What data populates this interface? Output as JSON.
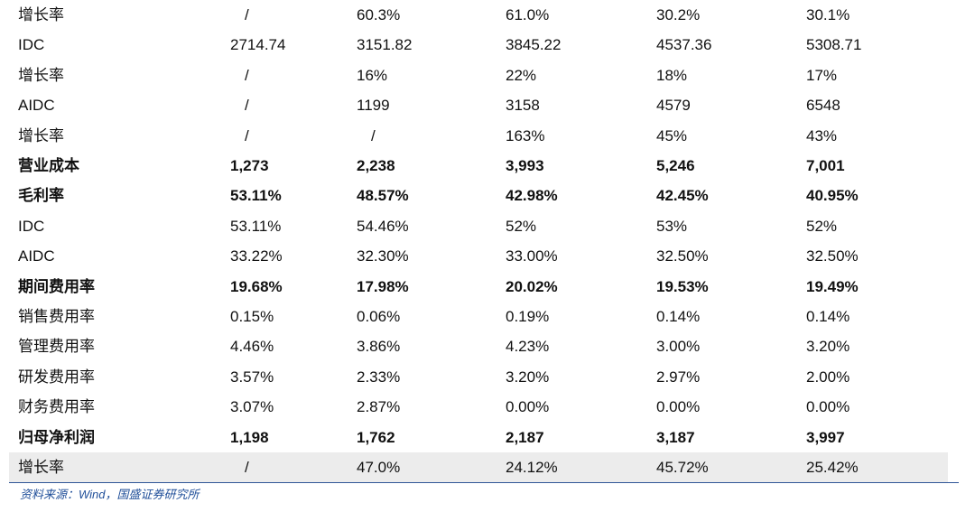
{
  "table": {
    "rows": [
      {
        "cells": [
          "增长率",
          "/",
          "60.3%",
          "61.0%",
          "30.2%",
          "30.1%"
        ]
      },
      {
        "cells": [
          "IDC",
          "2714.74",
          "3151.82",
          "3845.22",
          "4537.36",
          "5308.71"
        ]
      },
      {
        "cells": [
          "增长率",
          "/",
          "16%",
          "22%",
          "18%",
          "17%"
        ]
      },
      {
        "cells": [
          "AIDC",
          "/",
          "1199",
          "3158",
          "4579",
          "6548"
        ]
      },
      {
        "cells": [
          "增长率",
          "/",
          "/",
          "163%",
          "45%",
          "43%"
        ]
      },
      {
        "cells": [
          "营业成本",
          "1,273",
          "2,238",
          "3,993",
          "5,246",
          "7,001"
        ],
        "bold": true
      },
      {
        "cells": [
          "毛利率",
          "53.11%",
          "48.57%",
          "42.98%",
          "42.45%",
          "40.95%"
        ],
        "bold": true
      },
      {
        "cells": [
          "IDC",
          "53.11%",
          "54.46%",
          "52%",
          "53%",
          "52%"
        ]
      },
      {
        "cells": [
          "AIDC",
          "33.22%",
          "32.30%",
          "33.00%",
          "32.50%",
          "32.50%"
        ]
      },
      {
        "cells": [
          "期间费用率",
          "19.68%",
          "17.98%",
          "20.02%",
          "19.53%",
          "19.49%"
        ],
        "bold": true
      },
      {
        "cells": [
          "销售费用率",
          "0.15%",
          "0.06%",
          "0.19%",
          "0.14%",
          "0.14%"
        ]
      },
      {
        "cells": [
          "管理费用率",
          "4.46%",
          "3.86%",
          "4.23%",
          "3.00%",
          "3.20%"
        ]
      },
      {
        "cells": [
          "研发费用率",
          "3.57%",
          "2.33%",
          "3.20%",
          "2.97%",
          "2.00%"
        ]
      },
      {
        "cells": [
          "财务费用率",
          "3.07%",
          "2.87%",
          "0.00%",
          "0.00%",
          "0.00%"
        ]
      },
      {
        "cells": [
          "归母净利润",
          "1,198",
          "1,762",
          "2,187",
          "3,187",
          "3,997"
        ],
        "bold": true
      },
      {
        "cells": [
          "增长率",
          "/",
          "47.0%",
          "24.12%",
          "45.72%",
          "25.42%"
        ],
        "shaded": true
      }
    ]
  },
  "source": "资料来源：Wind，国盛证券研究所"
}
